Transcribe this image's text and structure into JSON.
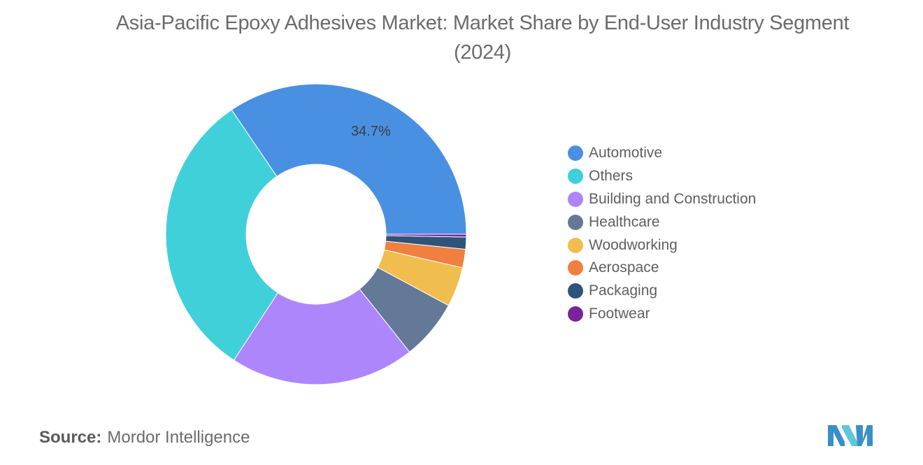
{
  "title": "Asia-Pacific Epoxy Adhesives Market: Market Share by End-User Industry Segment (2024)",
  "source": {
    "label": "Source:",
    "text": "Mordor Intelligence"
  },
  "logo": {
    "name": "mordor-intelligence-logo",
    "colors": [
      "#3a8fc8",
      "#5fc8d6"
    ]
  },
  "chart_data": {
    "type": "pie",
    "variant": "donut",
    "title": "Asia-Pacific Epoxy Adhesives Market: Market Share by End-User Industry Segment (2024)",
    "legend_position": "right",
    "start_angle_deg": 0,
    "direction": "counterclockwise",
    "slices": [
      {
        "label": "Automotive",
        "value": 34.7,
        "color": "#4a90e2",
        "display_label": "34.7%"
      },
      {
        "label": "Others",
        "value": 31.5,
        "color": "#40d0da",
        "display_label": ""
      },
      {
        "label": "Building and Construction",
        "value": 20.0,
        "color": "#ad86fc",
        "display_label": ""
      },
      {
        "label": "Healthcare",
        "value": 6.5,
        "color": "#647897",
        "display_label": ""
      },
      {
        "label": "Woodworking",
        "value": 4.3,
        "color": "#f0bd4e",
        "display_label": ""
      },
      {
        "label": "Aerospace",
        "value": 2.0,
        "color": "#f08040",
        "display_label": ""
      },
      {
        "label": "Packaging",
        "value": 1.3,
        "color": "#2e5579",
        "display_label": ""
      },
      {
        "label": "Footwear",
        "value": 0.3,
        "color": "#7a229a",
        "display_label": ""
      }
    ]
  }
}
